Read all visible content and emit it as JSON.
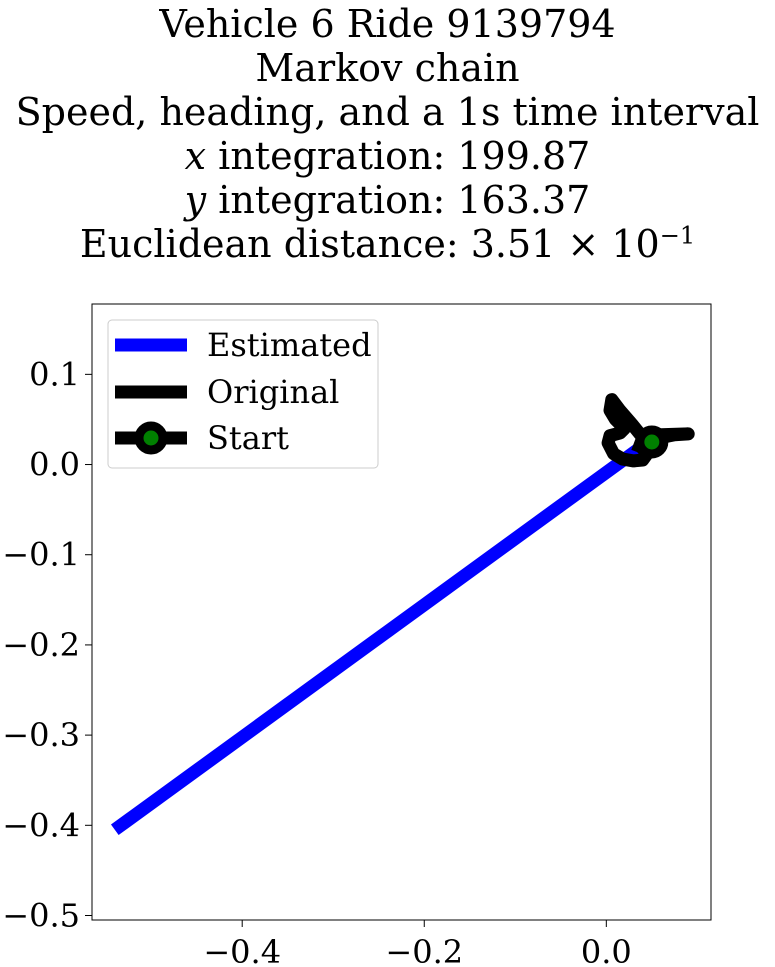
{
  "chart_data": {
    "type": "line",
    "title_lines": {
      "line1": "Vehicle 6 Ride 9139794",
      "line2": "Markov chain",
      "line3": "Speed, heading, and a 1s time interval",
      "line4_var": "x",
      "line4_text": " integration: 199.87",
      "line5_var": "y",
      "line5_text": " integration: 163.37",
      "line6_text": "Euclidean distance: 3.51 × 10",
      "line6_exp": "−1"
    },
    "xlim": [
      -0.565,
      0.115
    ],
    "ylim": [
      -0.505,
      0.178
    ],
    "x_ticks": [
      {
        "value": -0.4,
        "label": "−0.4"
      },
      {
        "value": -0.2,
        "label": "−0.2"
      },
      {
        "value": 0.0,
        "label": "0.0"
      }
    ],
    "y_ticks": [
      {
        "value": 0.1,
        "label": "0.1"
      },
      {
        "value": 0.0,
        "label": "0.0"
      },
      {
        "value": -0.1,
        "label": "−0.1"
      },
      {
        "value": -0.2,
        "label": "−0.2"
      },
      {
        "value": -0.3,
        "label": "−0.3"
      },
      {
        "value": -0.4,
        "label": "−0.4"
      },
      {
        "value": -0.5,
        "label": "−0.5"
      }
    ],
    "series": [
      {
        "name": "Estimated",
        "color": "#0000ff",
        "points": [
          [
            -0.54,
            -0.405
          ],
          [
            0.035,
            0.017
          ]
        ]
      },
      {
        "name": "Original",
        "color": "#000000",
        "points": [
          [
            0.05,
            0.025
          ],
          [
            0.06,
            0.03
          ],
          [
            0.075,
            0.033
          ],
          [
            0.09,
            0.034
          ],
          [
            0.06,
            0.033
          ],
          [
            0.04,
            0.03
          ],
          [
            0.028,
            0.045
          ],
          [
            0.015,
            0.06
          ],
          [
            0.006,
            0.072
          ],
          [
            0.004,
            0.06
          ],
          [
            0.01,
            0.05
          ],
          [
            0.02,
            0.04
          ],
          [
            0.015,
            0.035
          ],
          [
            0.004,
            0.032
          ],
          [
            0.002,
            0.024
          ],
          [
            0.008,
            0.012
          ],
          [
            0.018,
            0.006
          ],
          [
            0.03,
            0.004
          ],
          [
            0.04,
            0.005
          ],
          [
            0.045,
            0.012
          ],
          [
            0.038,
            0.02
          ],
          [
            0.03,
            0.023
          ]
        ]
      }
    ],
    "start_point": {
      "name": "Start",
      "x": 0.05,
      "y": 0.025,
      "marker_face": "#008000",
      "marker_edge": "#000000"
    },
    "legend": {
      "placement": "upper-left",
      "entries": [
        "Estimated",
        "Original",
        "Start"
      ]
    },
    "grid": false
  }
}
